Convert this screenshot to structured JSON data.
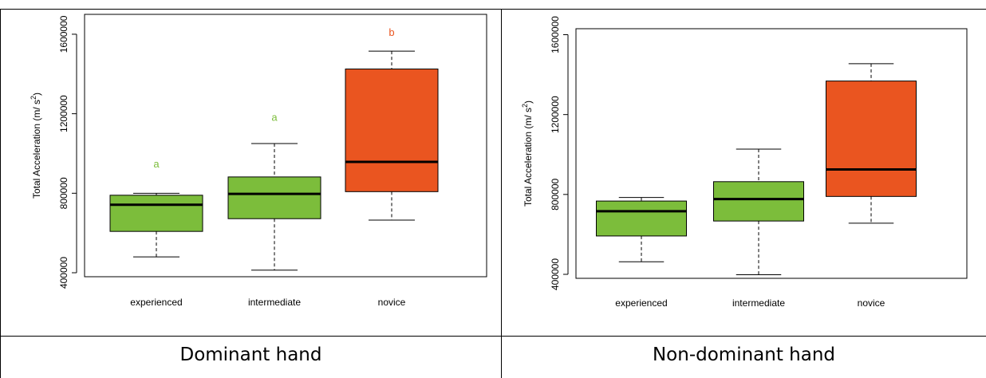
{
  "captions": [
    "Dominant hand",
    "Non-dominant hand"
  ],
  "colors": {
    "green": "#7cbd3b",
    "orange": "#ea5520"
  },
  "chart_data": [
    {
      "type": "boxplot",
      "ylabel": "Total Acceleration (m/ s",
      "ylabel_sup": "2",
      "ylabel_close": ")",
      "ylim": [
        380000,
        1700000
      ],
      "yticks": [
        400000,
        800000,
        1200000,
        1600000
      ],
      "categories": [
        "experienced",
        "intermediate",
        "novice"
      ],
      "boxes": [
        {
          "whisker_low": 480000,
          "q1": 608000,
          "median": 742000,
          "q3": 790000,
          "whisker_high": 800000,
          "color": "green",
          "letter": "a",
          "letter_y": 930000
        },
        {
          "whisker_low": 413000,
          "q1": 672000,
          "median": 797000,
          "q3": 882000,
          "whisker_high": 1050000,
          "color": "green",
          "letter": "a",
          "letter_y": 1165000
        },
        {
          "whisker_low": 665000,
          "q1": 808000,
          "median": 958000,
          "q3": 1425000,
          "whisker_high": 1515000,
          "color": "orange",
          "letter": "b",
          "letter_y": 1592000
        }
      ]
    },
    {
      "type": "boxplot",
      "ylabel": "Total Acceleration (m/ s",
      "ylabel_sup": "2",
      "ylabel_close": ")",
      "ylim": [
        380000,
        1630000
      ],
      "yticks": [
        400000,
        800000,
        1200000,
        1600000
      ],
      "categories": [
        "experienced",
        "intermediate",
        "novice"
      ],
      "boxes": [
        {
          "whisker_low": 463000,
          "q1": 592000,
          "median": 716000,
          "q3": 767000,
          "whisker_high": 785000,
          "color": "green"
        },
        {
          "whisker_low": 398000,
          "q1": 667000,
          "median": 777000,
          "q3": 864000,
          "whisker_high": 1027000,
          "color": "green"
        },
        {
          "whisker_low": 656000,
          "q1": 790000,
          "median": 925000,
          "q3": 1368000,
          "whisker_high": 1455000,
          "color": "orange"
        }
      ]
    }
  ]
}
